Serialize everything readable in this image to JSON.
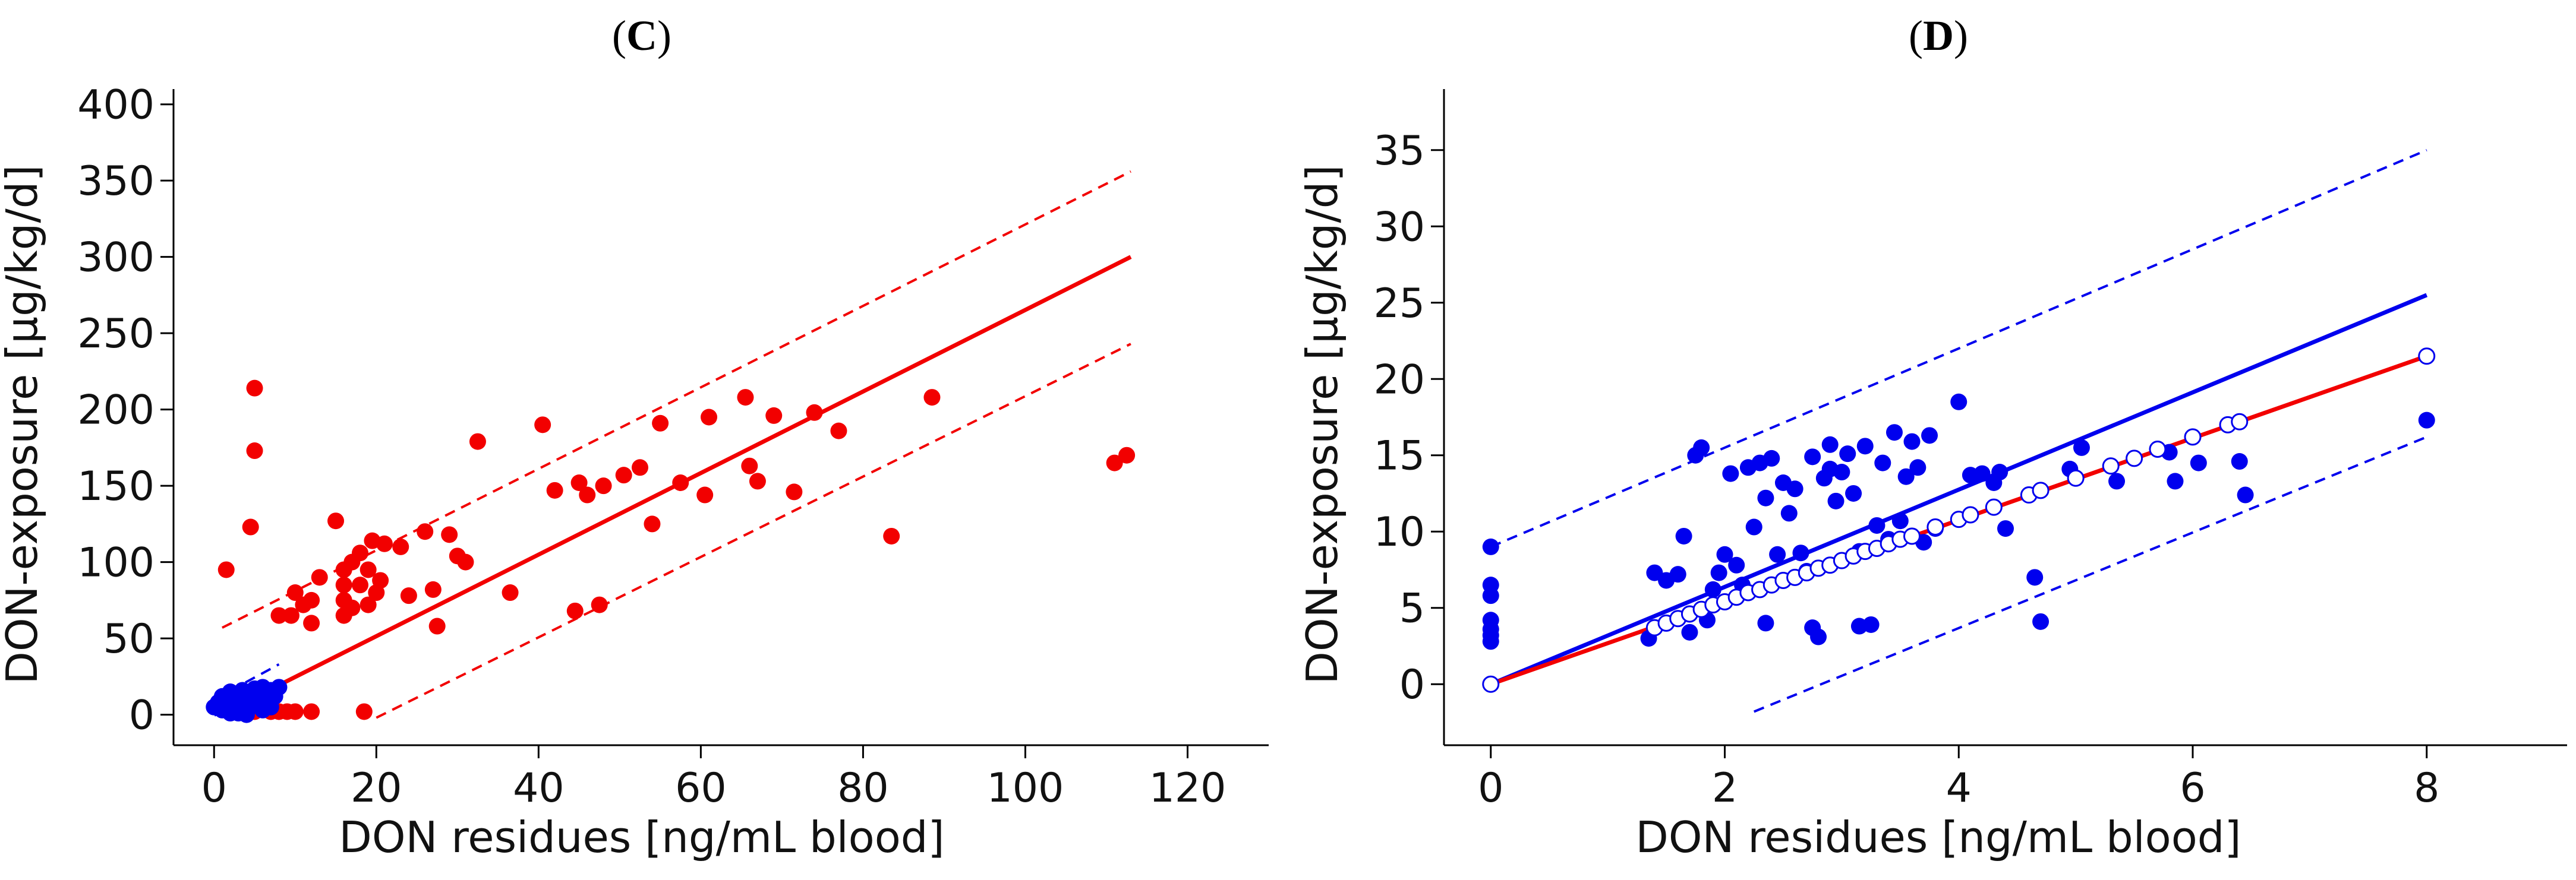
{
  "chart_data": [
    {
      "id": "C",
      "panel_label_open": "(",
      "panel_label_letter": "C",
      "panel_label_close": ")",
      "type": "scatter",
      "xlabel": "DON residues [ng/mL blood]",
      "ylabel": "DON-exposure [µg/kg/d]",
      "xlim": [
        -5,
        130
      ],
      "ylim": [
        -20,
        410
      ],
      "xticks": [
        0,
        20,
        40,
        60,
        80,
        100,
        120
      ],
      "yticks": [
        0,
        50,
        100,
        150,
        200,
        250,
        300,
        350,
        400
      ],
      "grid": false,
      "colors": {
        "red": "#f20000",
        "blue": "#0000ee"
      },
      "series": [
        {
          "name": "red points",
          "color": "#f20000",
          "points": [
            [
              1.5,
              95
            ],
            [
              4.5,
              123
            ],
            [
              5,
              173
            ],
            [
              5,
              214
            ],
            [
              8,
              65
            ],
            [
              9.5,
              65
            ],
            [
              10,
              80
            ],
            [
              11,
              72
            ],
            [
              12,
              60
            ],
            [
              12,
              75
            ],
            [
              13,
              90
            ],
            [
              15,
              127
            ],
            [
              16,
              65
            ],
            [
              16,
              75
            ],
            [
              16,
              85
            ],
            [
              16,
              95
            ],
            [
              17,
              70
            ],
            [
              17,
              100
            ],
            [
              18,
              85
            ],
            [
              18,
              106
            ],
            [
              19,
              72
            ],
            [
              19,
              95
            ],
            [
              19.5,
              114
            ],
            [
              20,
              80
            ],
            [
              20.5,
              88
            ],
            [
              21,
              112
            ],
            [
              23,
              110
            ],
            [
              24,
              78
            ],
            [
              26,
              120
            ],
            [
              27,
              82
            ],
            [
              27.5,
              58
            ],
            [
              29,
              118
            ],
            [
              30,
              104
            ],
            [
              31,
              100
            ],
            [
              32.5,
              179
            ],
            [
              36.5,
              80
            ],
            [
              40.5,
              190
            ],
            [
              42,
              147
            ],
            [
              44.5,
              68
            ],
            [
              45,
              152
            ],
            [
              46,
              144
            ],
            [
              47.5,
              72
            ],
            [
              48,
              150
            ],
            [
              50.5,
              157
            ],
            [
              52.5,
              162
            ],
            [
              54,
              125
            ],
            [
              55,
              191
            ],
            [
              57.5,
              152
            ],
            [
              60.5,
              144
            ],
            [
              61,
              195
            ],
            [
              65.5,
              208
            ],
            [
              66,
              163
            ],
            [
              67,
              153
            ],
            [
              69,
              196
            ],
            [
              71.5,
              146
            ],
            [
              74,
              198
            ],
            [
              77,
              186
            ],
            [
              83.5,
              117
            ],
            [
              88.5,
              208
            ],
            [
              111,
              165
            ],
            [
              112.5,
              170
            ],
            [
              5,
              2
            ],
            [
              7,
              2
            ],
            [
              8,
              2
            ],
            [
              9,
              2
            ],
            [
              10,
              2
            ],
            [
              12,
              2
            ],
            [
              18.5,
              2
            ]
          ]
        },
        {
          "name": "blue points",
          "color": "#0000ee",
          "points": [
            [
              0,
              5
            ],
            [
              0.5,
              8
            ],
            [
              1,
              12
            ],
            [
              1,
              3
            ],
            [
              1.5,
              6
            ],
            [
              2,
              10
            ],
            [
              2,
              15
            ],
            [
              2.5,
              4
            ],
            [
              3,
              12
            ],
            [
              3,
              7
            ],
            [
              3.5,
              16
            ],
            [
              4,
              9
            ],
            [
              4,
              14
            ],
            [
              4.5,
              5
            ],
            [
              5,
              17
            ],
            [
              5,
              11
            ],
            [
              5.5,
              8
            ],
            [
              6,
              14
            ],
            [
              6,
              18
            ],
            [
              6.5,
              10
            ],
            [
              7,
              16
            ],
            [
              7.5,
              12
            ],
            [
              8,
              18
            ],
            [
              3,
              1
            ],
            [
              4,
              0
            ],
            [
              6,
              3
            ],
            [
              2,
              1
            ],
            [
              7,
              5
            ]
          ]
        }
      ],
      "lines": [
        {
          "name": "red fit",
          "color": "#f20000",
          "dashed": false,
          "x": [
            1.5,
            113
          ],
          "y": [
            2,
            300
          ]
        },
        {
          "name": "red upper bound",
          "color": "#f20000",
          "dashed": true,
          "x": [
            1,
            113
          ],
          "y": [
            57,
            356
          ]
        },
        {
          "name": "red lower bound",
          "color": "#f20000",
          "dashed": true,
          "x": [
            20,
            113
          ],
          "y": [
            -2,
            243
          ]
        },
        {
          "name": "blue fit",
          "color": "#0000ee",
          "dashed": false,
          "x": [
            0,
            8
          ],
          "y": [
            0,
            22
          ]
        },
        {
          "name": "blue upper bound",
          "color": "#0000ee",
          "dashed": true,
          "x": [
            0,
            8
          ],
          "y": [
            10,
            33
          ]
        },
        {
          "name": "blue lower bound",
          "color": "#0000ee",
          "dashed": true,
          "x": [
            2,
            8
          ],
          "y": [
            -3,
            14
          ]
        }
      ]
    },
    {
      "id": "D",
      "panel_label_open": "(",
      "panel_label_letter": "D",
      "panel_label_close": ")",
      "type": "scatter",
      "xlabel": "DON residues [ng/mL blood]",
      "ylabel": "DON-exposure [µg/kg/d]",
      "xlim": [
        -0.4,
        9.2
      ],
      "ylim": [
        -4,
        39
      ],
      "xticks": [
        0,
        2,
        4,
        6,
        8
      ],
      "yticks": [
        0,
        5,
        10,
        15,
        20,
        25,
        30,
        35
      ],
      "grid": false,
      "colors": {
        "red": "#f20000",
        "blue": "#0000ee",
        "open_marker_fill": "#ffffff"
      },
      "series": [
        {
          "name": "blue points",
          "color": "#0000ee",
          "points": [
            [
              0,
              9
            ],
            [
              0,
              6.5
            ],
            [
              0,
              5.8
            ],
            [
              0,
              4.2
            ],
            [
              0,
              3.6
            ],
            [
              0,
              3.2
            ],
            [
              0,
              2.8
            ],
            [
              1.35,
              3
            ],
            [
              1.4,
              7.3
            ],
            [
              1.5,
              6.8
            ],
            [
              1.6,
              7.2
            ],
            [
              1.65,
              9.7
            ],
            [
              1.7,
              3.4
            ],
            [
              1.75,
              15
            ],
            [
              1.8,
              15.5
            ],
            [
              1.85,
              4.2
            ],
            [
              1.9,
              6.2
            ],
            [
              1.95,
              7.3
            ],
            [
              2.0,
              8.5
            ],
            [
              2.05,
              13.8
            ],
            [
              2.1,
              7.8
            ],
            [
              2.15,
              6.5
            ],
            [
              2.2,
              14.2
            ],
            [
              2.25,
              10.3
            ],
            [
              2.3,
              14.5
            ],
            [
              2.35,
              12.2
            ],
            [
              2.35,
              4
            ],
            [
              2.4,
              14.8
            ],
            [
              2.45,
              8.5
            ],
            [
              2.5,
              13.2
            ],
            [
              2.55,
              11.2
            ],
            [
              2.6,
              12.8
            ],
            [
              2.65,
              8.6
            ],
            [
              2.7,
              7.4
            ],
            [
              2.75,
              3.7
            ],
            [
              2.75,
              14.9
            ],
            [
              2.8,
              3.1
            ],
            [
              2.85,
              13.5
            ],
            [
              2.9,
              14.1
            ],
            [
              2.9,
              15.7
            ],
            [
              2.95,
              12
            ],
            [
              3.0,
              13.9
            ],
            [
              3.05,
              15.1
            ],
            [
              3.1,
              12.5
            ],
            [
              3.15,
              8.7
            ],
            [
              3.15,
              3.8
            ],
            [
              3.2,
              15.6
            ],
            [
              3.25,
              3.9
            ],
            [
              3.3,
              10.4
            ],
            [
              3.35,
              14.5
            ],
            [
              3.4,
              9.5
            ],
            [
              3.45,
              16.5
            ],
            [
              3.5,
              10.7
            ],
            [
              3.55,
              13.6
            ],
            [
              3.6,
              15.9
            ],
            [
              3.65,
              14.2
            ],
            [
              3.7,
              9.3
            ],
            [
              3.75,
              16.3
            ],
            [
              3.8,
              10.2
            ],
            [
              4.0,
              18.5
            ],
            [
              4.1,
              13.7
            ],
            [
              4.2,
              13.8
            ],
            [
              4.3,
              13.2
            ],
            [
              4.35,
              13.9
            ],
            [
              4.4,
              10.2
            ],
            [
              4.65,
              7
            ],
            [
              4.7,
              4.1
            ],
            [
              4.95,
              14.1
            ],
            [
              5.05,
              15.5
            ],
            [
              5.35,
              13.3
            ],
            [
              5.8,
              15.2
            ],
            [
              5.85,
              13.3
            ],
            [
              6.05,
              14.5
            ],
            [
              6.4,
              14.6
            ],
            [
              6.45,
              12.4
            ],
            [
              8.0,
              17.3
            ]
          ]
        },
        {
          "name": "open circles",
          "color": "#0000ee",
          "open": true,
          "points": [
            [
              0,
              0
            ],
            [
              1.4,
              3.7
            ],
            [
              1.5,
              4.0
            ],
            [
              1.6,
              4.3
            ],
            [
              1.7,
              4.6
            ],
            [
              1.8,
              4.9
            ],
            [
              1.9,
              5.2
            ],
            [
              2.0,
              5.4
            ],
            [
              2.1,
              5.7
            ],
            [
              2.2,
              6.0
            ],
            [
              2.3,
              6.2
            ],
            [
              2.4,
              6.5
            ],
            [
              2.5,
              6.8
            ],
            [
              2.6,
              7.0
            ],
            [
              2.7,
              7.3
            ],
            [
              2.8,
              7.6
            ],
            [
              2.9,
              7.8
            ],
            [
              3.0,
              8.1
            ],
            [
              3.1,
              8.4
            ],
            [
              3.2,
              8.7
            ],
            [
              3.3,
              8.9
            ],
            [
              3.4,
              9.2
            ],
            [
              3.5,
              9.5
            ],
            [
              3.6,
              9.7
            ],
            [
              3.8,
              10.3
            ],
            [
              4.0,
              10.8
            ],
            [
              4.1,
              11.1
            ],
            [
              4.3,
              11.6
            ],
            [
              4.6,
              12.4
            ],
            [
              4.7,
              12.7
            ],
            [
              5.0,
              13.5
            ],
            [
              5.3,
              14.3
            ],
            [
              5.5,
              14.8
            ],
            [
              5.7,
              15.4
            ],
            [
              6.0,
              16.2
            ],
            [
              6.3,
              17.0
            ],
            [
              6.4,
              17.2
            ],
            [
              8.0,
              21.5
            ]
          ]
        }
      ],
      "lines": [
        {
          "name": "blue fit",
          "color": "#0000ee",
          "dashed": false,
          "x": [
            0,
            8
          ],
          "y": [
            0,
            25.5
          ]
        },
        {
          "name": "red fit",
          "color": "#f20000",
          "dashed": false,
          "x": [
            0,
            8
          ],
          "y": [
            0,
            21.5
          ]
        },
        {
          "name": "blue upper bound",
          "color": "#0000ee",
          "dashed": true,
          "x": [
            0,
            8
          ],
          "y": [
            9,
            35
          ]
        },
        {
          "name": "blue lower bound",
          "color": "#0000ee",
          "dashed": true,
          "x": [
            2.25,
            8
          ],
          "y": [
            -1.8,
            16.2
          ]
        }
      ]
    }
  ]
}
